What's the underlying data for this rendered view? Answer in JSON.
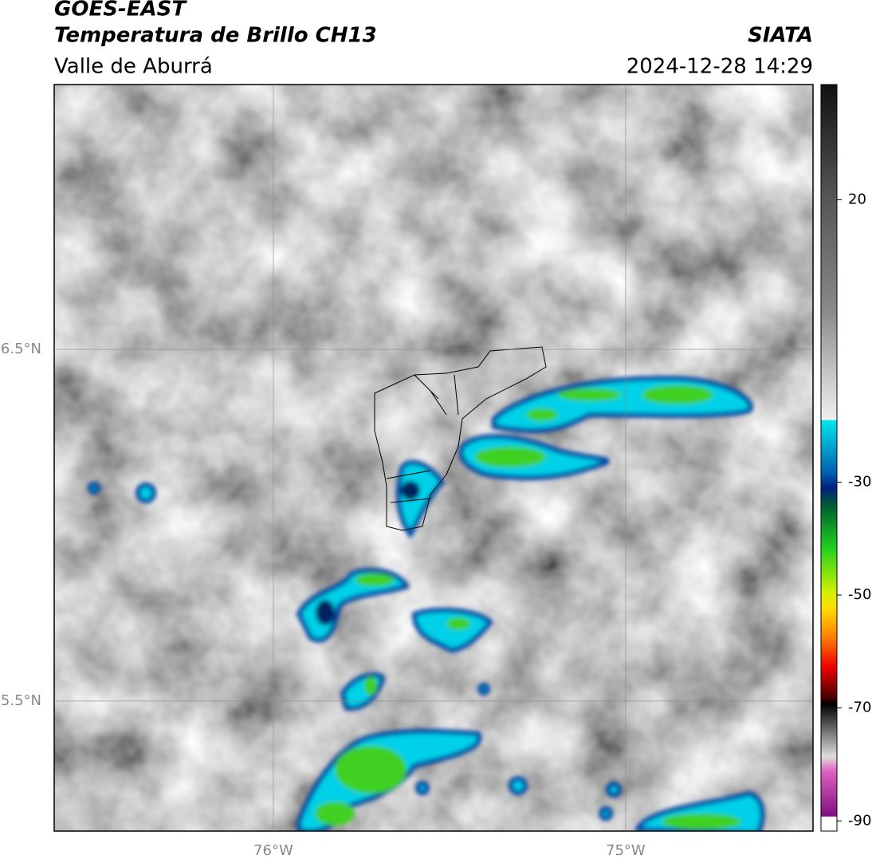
{
  "header": {
    "title": "GOES-EAST",
    "subtitle": "Temperatura de Brillo CH13",
    "region": "Valle de Aburrá",
    "source": "SIATA",
    "timestamp": "2024-12-28 14:29"
  },
  "map": {
    "xlim": [
      -76.622,
      -74.468
    ],
    "ylim": [
      5.13,
      7.253
    ],
    "xticks": [
      {
        "value": -76,
        "label": "76°W"
      },
      {
        "value": -75,
        "label": "75°W"
      }
    ],
    "yticks": [
      {
        "value": 6.5,
        "label": "6.5°N"
      },
      {
        "value": 5.5,
        "label": "5.5°N"
      }
    ]
  },
  "colorbar": {
    "ylim": [
      -91.8,
      40.4
    ],
    "yticks": [
      20,
      -30,
      -50,
      -70,
      -90
    ]
  }
}
